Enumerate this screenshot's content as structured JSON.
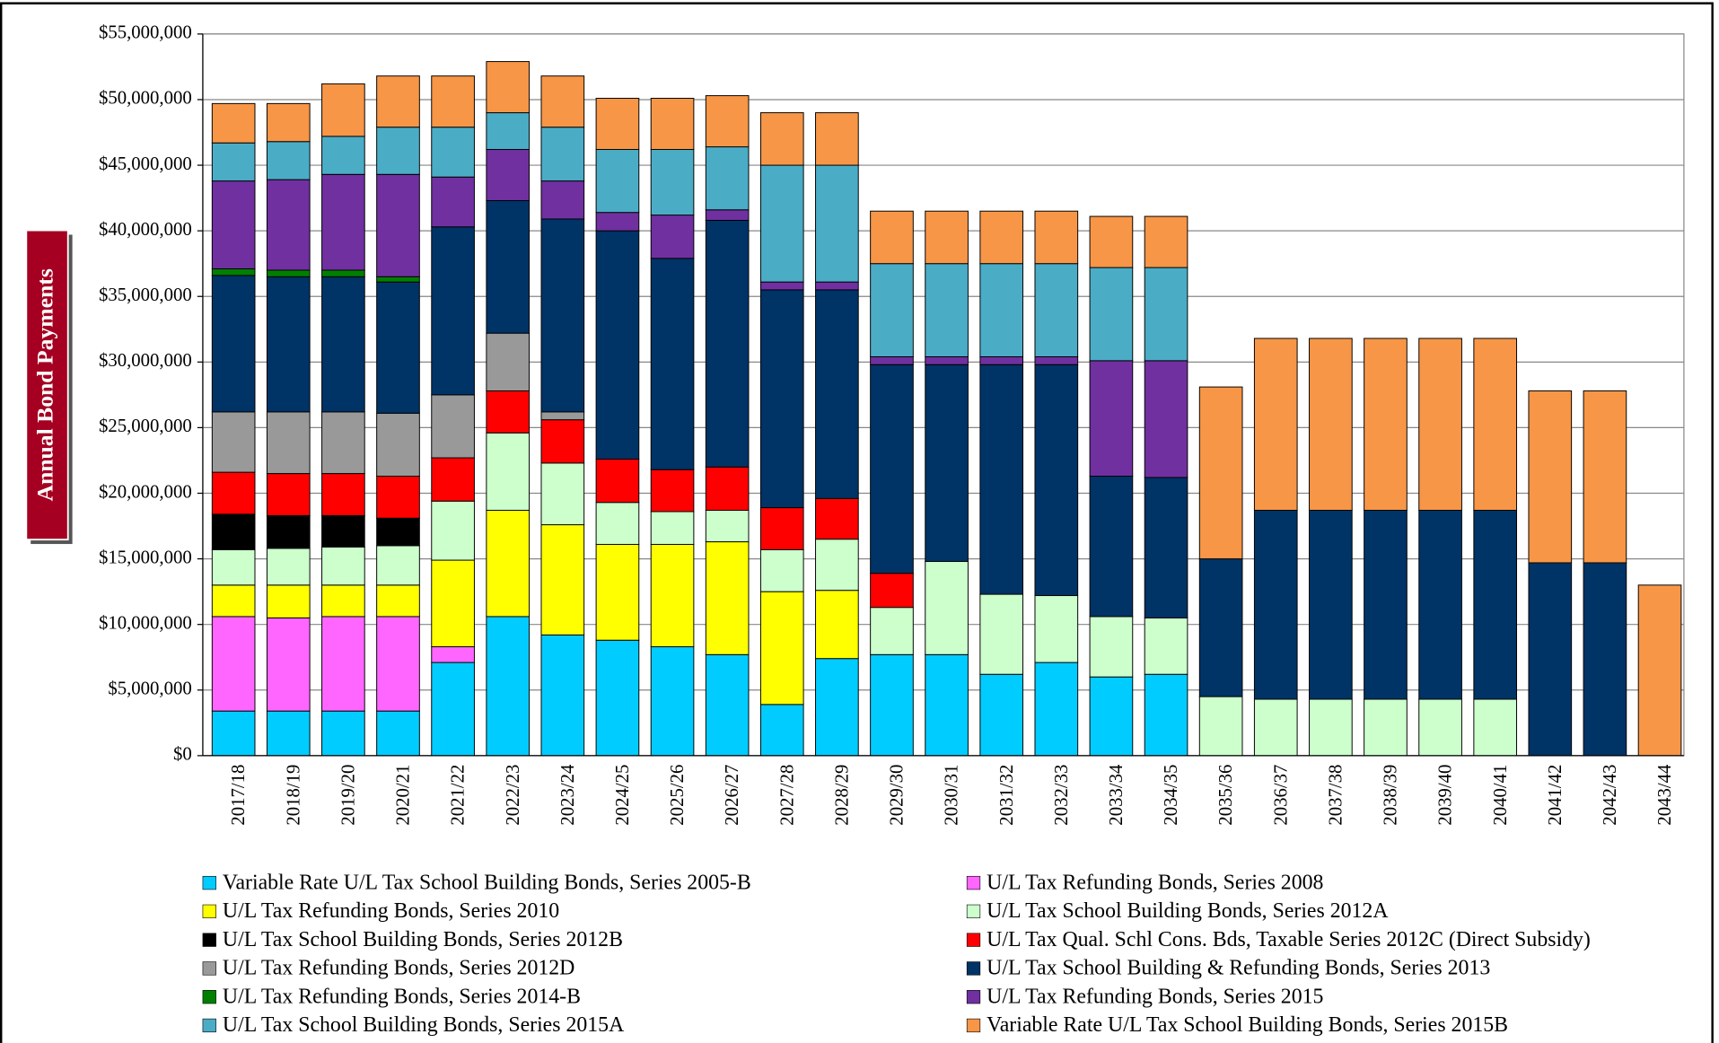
{
  "chart_data": {
    "type": "stacked_bar",
    "y_label": "Annual Bond Payments",
    "categories": [
      "2017/18",
      "2018/19",
      "2019/20",
      "2020/21",
      "2021/22",
      "2022/23",
      "2023/24",
      "2024/25",
      "2025/26",
      "2026/27",
      "2027/28",
      "2028/29",
      "2029/30",
      "2030/31",
      "2031/32",
      "2032/33",
      "2033/34",
      "2034/35",
      "2035/36",
      "2036/37",
      "2037/38",
      "2038/39",
      "2039/40",
      "2040/41",
      "2041/42",
      "2042/43",
      "2043/44"
    ],
    "ylim": [
      0,
      55000000
    ],
    "yticks": [
      {
        "value": 0,
        "label": "$0"
      },
      {
        "value": 5000000,
        "label": "$5,000,000"
      },
      {
        "value": 10000000,
        "label": "$10,000,000"
      },
      {
        "value": 15000000,
        "label": "$15,000,000"
      },
      {
        "value": 20000000,
        "label": "$20,000,000"
      },
      {
        "value": 25000000,
        "label": "$25,000,000"
      },
      {
        "value": 30000000,
        "label": "$30,000,000"
      },
      {
        "value": 35000000,
        "label": "$35,000,000"
      },
      {
        "value": 40000000,
        "label": "$40,000,000"
      },
      {
        "value": 45000000,
        "label": "$45,000,000"
      },
      {
        "value": 50000000,
        "label": "$50,000,000"
      },
      {
        "value": 55000000,
        "label": "$55,000,000"
      }
    ],
    "grid": true,
    "series": [
      {
        "name": "Variable Rate U/L Tax School Building Bonds, Series 2005-B",
        "color": "#00ccff",
        "values": [
          3400000,
          3400000,
          3400000,
          3400000,
          7100000,
          10600000,
          9200000,
          8800000,
          8300000,
          7700000,
          3900000,
          7400000,
          7700000,
          7700000,
          6200000,
          7100000,
          6000000,
          6200000,
          null,
          null,
          null,
          null,
          null,
          null,
          null,
          null,
          null
        ]
      },
      {
        "name": "U/L Tax Refunding Bonds, Series 2008",
        "color": "#ff66ff",
        "values": [
          7200000,
          7100000,
          7200000,
          7200000,
          1200000,
          null,
          null,
          null,
          null,
          null,
          null,
          null,
          null,
          null,
          null,
          null,
          null,
          null,
          null,
          null,
          null,
          null,
          null,
          null,
          null,
          null,
          null
        ]
      },
      {
        "name": "U/L Tax Refunding Bonds, Series 2010",
        "color": "#ffff00",
        "values": [
          2400000,
          2500000,
          2400000,
          2400000,
          6600000,
          8100000,
          8400000,
          7300000,
          7800000,
          8600000,
          8600000,
          5200000,
          null,
          null,
          null,
          null,
          null,
          null,
          null,
          null,
          null,
          null,
          null,
          null,
          null,
          null,
          null
        ]
      },
      {
        "name": "U/L Tax School Building Bonds, Series 2012A",
        "color": "#ccffcc",
        "values": [
          2700000,
          2800000,
          2900000,
          3000000,
          4500000,
          5900000,
          4700000,
          3200000,
          2500000,
          2400000,
          3200000,
          3900000,
          3600000,
          7100000,
          6100000,
          5100000,
          4600000,
          4300000,
          4500000,
          4300000,
          4300000,
          4300000,
          4300000,
          4300000,
          null,
          null,
          null
        ]
      },
      {
        "name": "U/L Tax School Building Bonds, Series 2012B",
        "color": "#000000",
        "values": [
          2700000,
          2500000,
          2400000,
          2100000,
          null,
          null,
          null,
          null,
          null,
          null,
          null,
          null,
          null,
          null,
          null,
          null,
          null,
          null,
          null,
          null,
          null,
          null,
          null,
          null,
          null,
          null,
          null
        ]
      },
      {
        "name": "U/L Tax Qual. Schl Cons. Bds, Taxable Series 2012C (Direct Subsidy)",
        "color": "#ff0000",
        "values": [
          3200000,
          3200000,
          3200000,
          3200000,
          3300000,
          3200000,
          3300000,
          3300000,
          3200000,
          3300000,
          3200000,
          3100000,
          2600000,
          null,
          null,
          null,
          null,
          null,
          null,
          null,
          null,
          null,
          null,
          null,
          null,
          null,
          null
        ]
      },
      {
        "name": "U/L Tax Refunding Bonds, Series 2012D",
        "color": "#999999",
        "values": [
          4600000,
          4700000,
          4700000,
          4800000,
          4800000,
          4400000,
          600000,
          null,
          null,
          null,
          null,
          null,
          null,
          null,
          null,
          null,
          null,
          null,
          null,
          null,
          null,
          null,
          null,
          null,
          null,
          null,
          null
        ]
      },
      {
        "name": "U/L Tax School Building & Refunding Bonds, Series 2013",
        "color": "#003366",
        "values": [
          10400000,
          10300000,
          10300000,
          10000000,
          12800000,
          10100000,
          14700000,
          17400000,
          16100000,
          18800000,
          16600000,
          15900000,
          15900000,
          15000000,
          17500000,
          17600000,
          10700000,
          10700000,
          10500000,
          14400000,
          14400000,
          14400000,
          14400000,
          14400000,
          14700000,
          14700000,
          null
        ]
      },
      {
        "name": "U/L Tax Refunding Bonds, Series 2014-B",
        "color": "#008000",
        "values": [
          500000,
          500000,
          500000,
          400000,
          null,
          null,
          null,
          null,
          null,
          null,
          null,
          null,
          null,
          null,
          null,
          null,
          null,
          null,
          null,
          null,
          null,
          null,
          null,
          null,
          null,
          null,
          null
        ]
      },
      {
        "name": "U/L Tax Refunding Bonds, Series 2015",
        "color": "#7030a0",
        "values": [
          6700000,
          6900000,
          7300000,
          7800000,
          3800000,
          3900000,
          2900000,
          1400000,
          3300000,
          800000,
          600000,
          600000,
          600000,
          600000,
          600000,
          600000,
          8800000,
          8900000,
          null,
          null,
          null,
          null,
          null,
          null,
          null,
          null,
          null
        ]
      },
      {
        "name": "U/L Tax School Building Bonds, Series 2015A",
        "color": "#4bacc6",
        "values": [
          2900000,
          2900000,
          2900000,
          3600000,
          3800000,
          2800000,
          4100000,
          4800000,
          5000000,
          4800000,
          8900000,
          8900000,
          7100000,
          7100000,
          7100000,
          7100000,
          7100000,
          7100000,
          null,
          null,
          null,
          null,
          null,
          null,
          null,
          null,
          null
        ]
      },
      {
        "name": "Variable Rate U/L Tax School Building Bonds, Series 2015B",
        "color": "#f79646",
        "values": [
          3000000,
          2900000,
          4000000,
          3900000,
          3900000,
          3900000,
          3900000,
          3900000,
          3900000,
          3900000,
          4000000,
          4000000,
          4000000,
          4000000,
          4000000,
          4000000,
          3900000,
          3900000,
          13100000,
          13100000,
          13100000,
          13100000,
          13100000,
          13100000,
          13100000,
          13100000,
          13000000
        ]
      }
    ]
  }
}
